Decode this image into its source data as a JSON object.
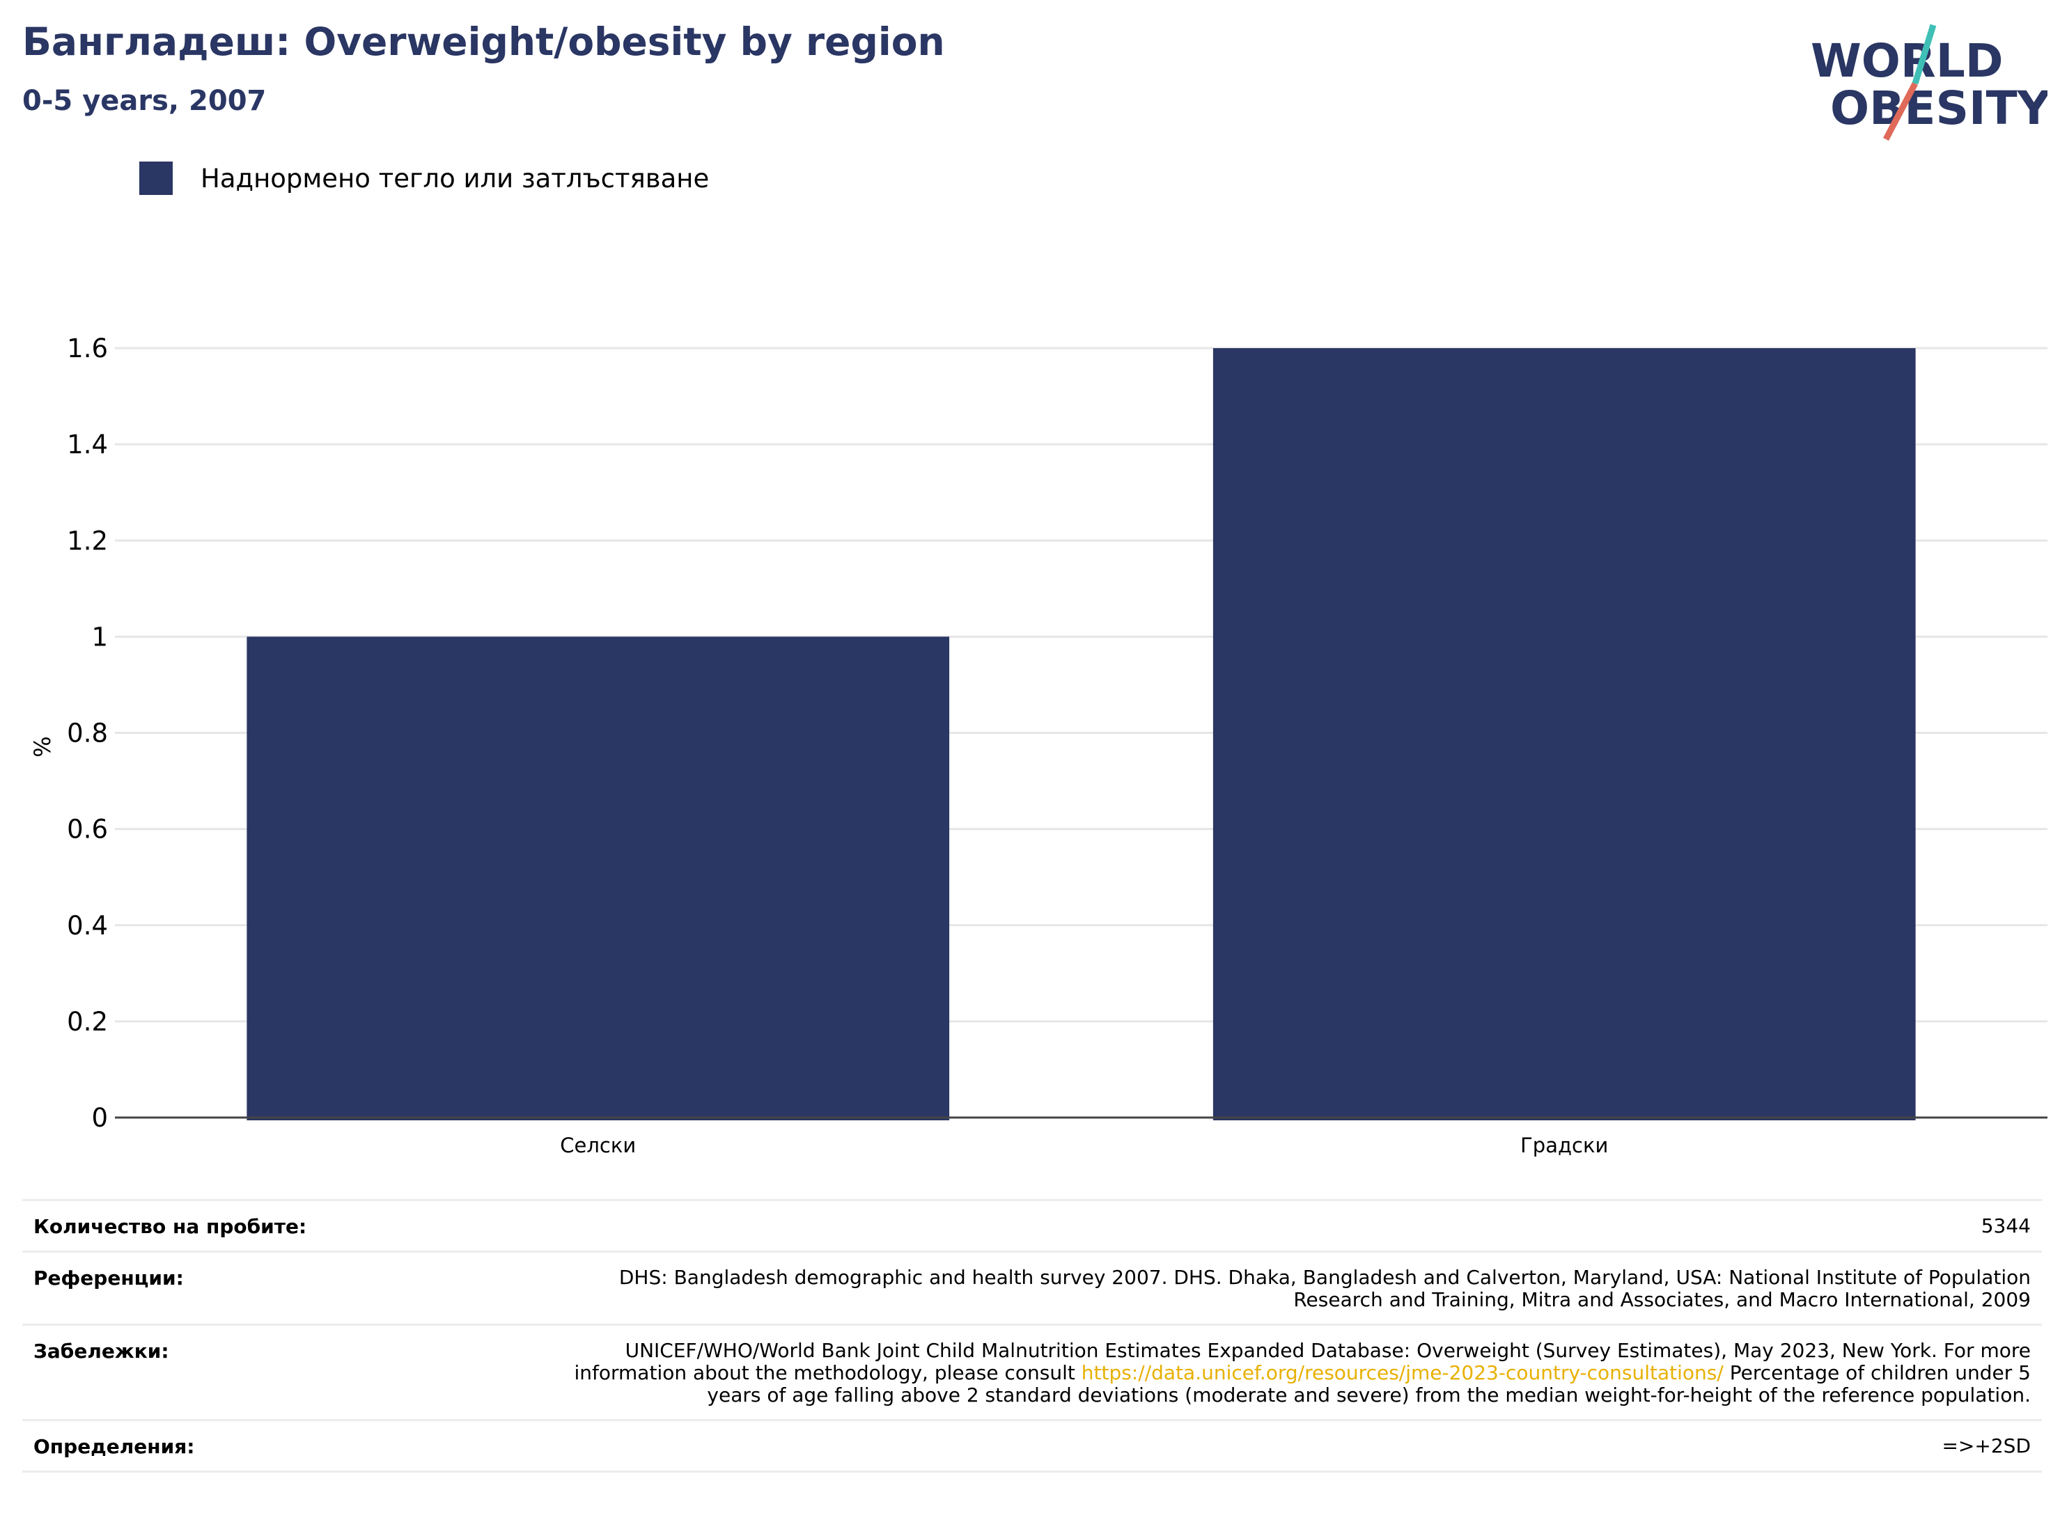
{
  "header": {
    "title": "Бангладеш: Overweight/obesity by region",
    "subtitle": "0-5 years, 2007"
  },
  "logo": {
    "line1": "WORLD",
    "line2": "OBESITY"
  },
  "colors": {
    "bar": "#2a3663",
    "title": "#2a3663",
    "link": "#e8b000",
    "grid": "#e6e6e6"
  },
  "chart_data": {
    "type": "bar",
    "categories": [
      "Селски",
      "Градски"
    ],
    "series": [
      {
        "name": "Наднормено тегло или затлъстяване",
        "values": [
          1.0,
          1.6
        ]
      }
    ],
    "ylabel": "%",
    "ylim": [
      0,
      1.6
    ],
    "yticks": [
      0,
      0.2,
      0.4,
      0.6,
      0.8,
      1,
      1.2,
      1.4,
      1.6
    ],
    "ytick_labels": [
      "0",
      "0.2",
      "0.4",
      "0.6",
      "0.8",
      "1",
      "1.2",
      "1.4",
      "1.6"
    ],
    "grid": true,
    "legend_position": "top-left"
  },
  "info": {
    "sample_label": "Количество на пробите:",
    "sample_value": "5344",
    "references_label": "Референции:",
    "references_value": "DHS: Bangladesh demographic and health survey 2007. DHS. Dhaka, Bangladesh and Calverton, Maryland, USA: National Institute of Population Research and Training, Mitra and Associates, and Macro International, 2009",
    "notes_label": "Забележки:",
    "notes_before": "UNICEF/WHO/World Bank Joint Child Malnutrition Estimates Expanded Database: Overweight (Survey Estimates), May 2023, New York. For more information about the methodology, please consult ",
    "notes_link": "https://data.unicef.org/resources/jme-2023-country-consultations/",
    "notes_after": " Percentage of children under 5 years of age falling above 2 standard deviations (moderate and severe) from the median weight-for-height of the reference population.",
    "definitions_label": "Определения:",
    "definitions_value": "=>+2SD"
  }
}
